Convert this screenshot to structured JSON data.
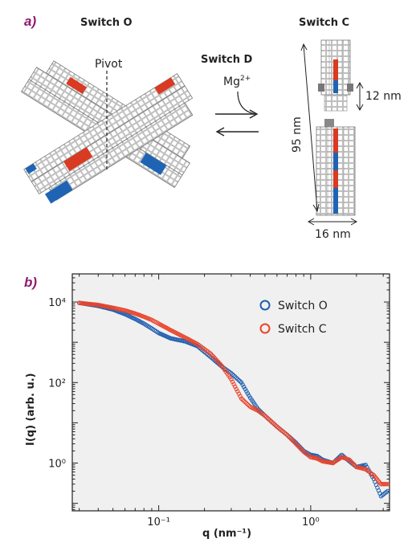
{
  "figure": {
    "panel_a": {
      "label": "a)",
      "switch_o_title": "Switch O",
      "switch_c_title": "Switch C",
      "switch_d_title": "Switch D",
      "pivot_label": "Pivot",
      "ion_label": "Mg",
      "ion_charge": "2+",
      "dim_12": "12 nm",
      "dim_95": "95 nm",
      "dim_16": "16 nm"
    },
    "panel_b": {
      "label": "b)"
    }
  },
  "colors": {
    "series_o": "#1f5fb0",
    "series_c": "#e8452c",
    "panel_label": "#8e1a6e",
    "plot_bg": "#f0f0f0",
    "block_red": "#d93a22",
    "block_blue": "#1f64b4"
  },
  "chart_data": {
    "type": "scatter",
    "x_scale": "log",
    "y_scale": "log",
    "xlabel": "q (nm⁻¹)",
    "ylabel": "I(q) (arb. u.)",
    "xlim": [
      0.027,
      3.3
    ],
    "ylim": [
      0.065,
      50000
    ],
    "x_ticks": [
      {
        "value": 0.1,
        "label": "10⁻¹"
      },
      {
        "value": 1.0,
        "label": "10⁰"
      }
    ],
    "y_ticks": [
      {
        "value": 1,
        "label": "10⁰"
      },
      {
        "value": 100,
        "label": "10²"
      },
      {
        "value": 10000,
        "label": "10⁴"
      }
    ],
    "legend_position": "top-right",
    "series": [
      {
        "name": "Switch O",
        "color": "#1f5fb0",
        "x": [
          0.03,
          0.04,
          0.05,
          0.06,
          0.07,
          0.08,
          0.09,
          0.1,
          0.12,
          0.15,
          0.18,
          0.22,
          0.26,
          0.3,
          0.35,
          0.4,
          0.45,
          0.5,
          0.6,
          0.7,
          0.8,
          0.9,
          1.0,
          1.1,
          1.2,
          1.4,
          1.6,
          1.8,
          2.0,
          2.3,
          2.6,
          2.9,
          3.2
        ],
        "y": [
          9500,
          8000,
          6500,
          5000,
          3800,
          2900,
          2200,
          1700,
          1250,
          1050,
          800,
          430,
          250,
          170,
          100,
          42,
          22,
          15,
          8,
          5,
          3.2,
          2.0,
          1.6,
          1.5,
          1.2,
          1.0,
          1.6,
          1.1,
          0.8,
          0.9,
          0.4,
          0.15,
          0.2
        ]
      },
      {
        "name": "Switch C",
        "color": "#e8452c",
        "x": [
          0.03,
          0.04,
          0.05,
          0.06,
          0.07,
          0.08,
          0.09,
          0.1,
          0.12,
          0.15,
          0.18,
          0.22,
          0.26,
          0.3,
          0.35,
          0.4,
          0.45,
          0.5,
          0.6,
          0.7,
          0.8,
          0.9,
          1.0,
          1.1,
          1.2,
          1.4,
          1.6,
          1.8,
          2.0,
          2.3,
          2.6,
          2.9,
          3.2
        ],
        "y": [
          9500,
          8500,
          7200,
          6200,
          5200,
          4300,
          3600,
          2900,
          2000,
          1300,
          900,
          520,
          260,
          120,
          40,
          25,
          20,
          15,
          8,
          5,
          3.0,
          1.9,
          1.4,
          1.3,
          1.1,
          1.0,
          1.4,
          1.2,
          0.8,
          0.7,
          0.5,
          0.3,
          0.3
        ]
      }
    ]
  }
}
